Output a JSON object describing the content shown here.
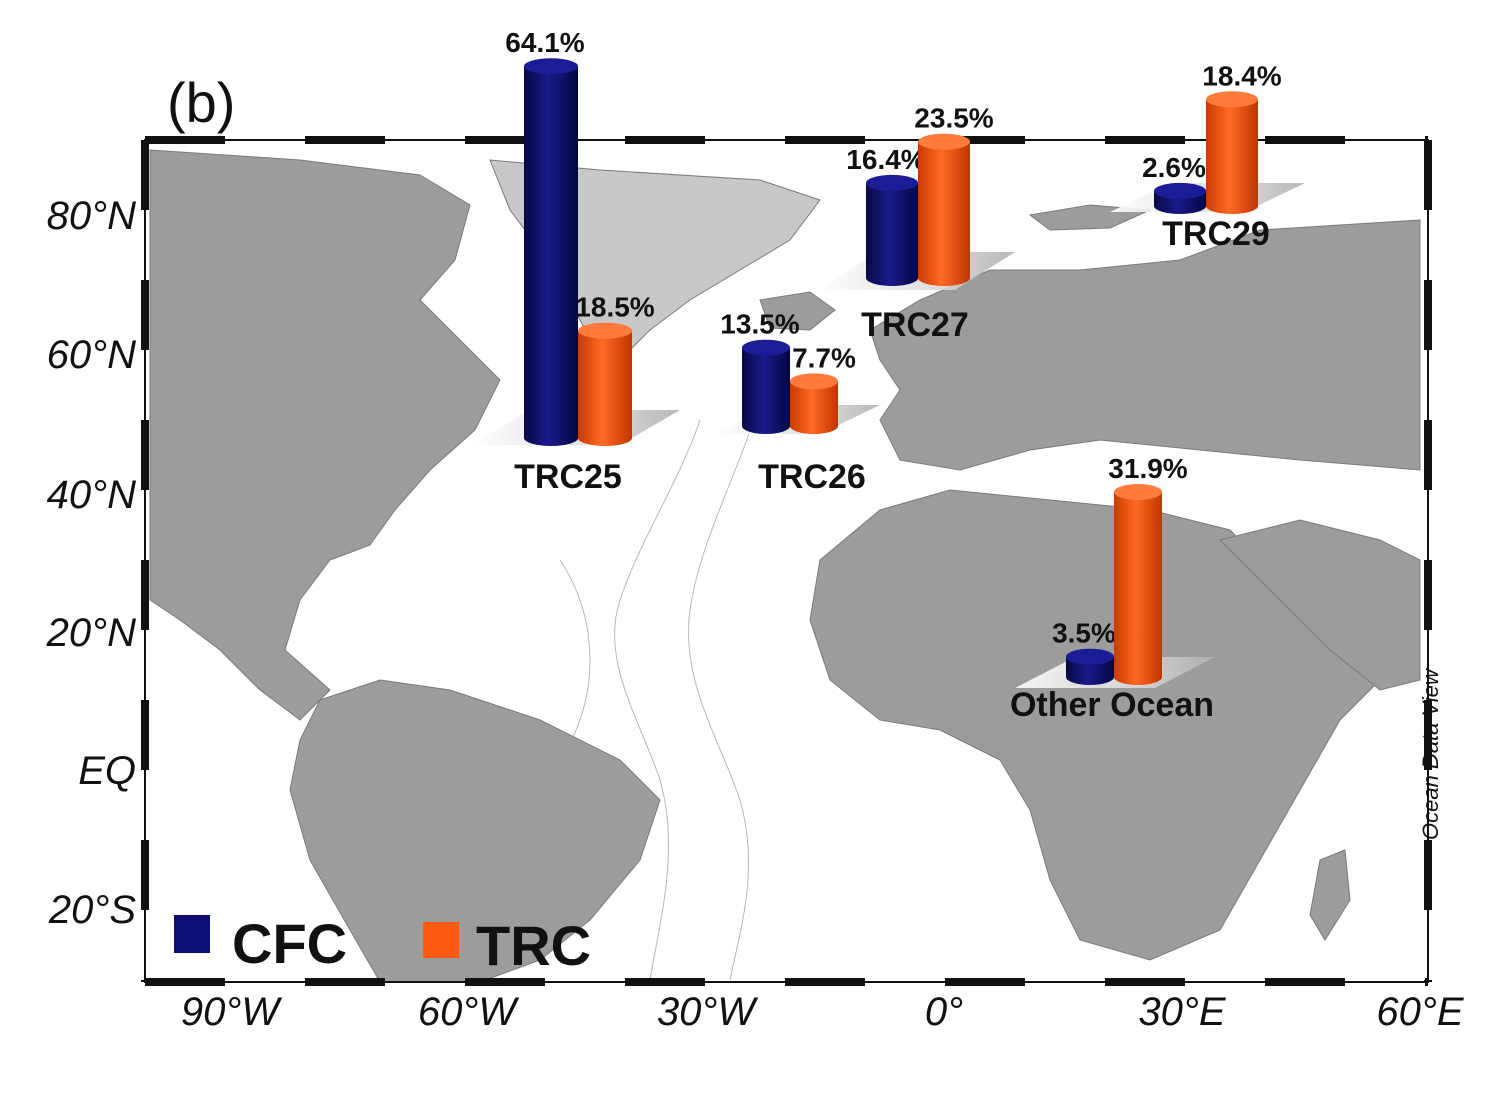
{
  "panel_label": "(b)",
  "map": {
    "latitude_labels": [
      "80°N",
      "60°N",
      "40°N",
      "20°N",
      "EQ",
      "20°S"
    ],
    "longitude_labels": [
      "90°W",
      "60°W",
      "30°W",
      "0°",
      "30°E",
      "60°E"
    ],
    "credit": "Ocean Data View",
    "colors": {
      "land": "#9c9c9c",
      "ice": "#c8c8c8",
      "ocean": "#ffffff",
      "frame": "#111111"
    }
  },
  "legend": {
    "items": [
      {
        "label": "CFC",
        "color": "#0d0d73"
      },
      {
        "label": "TRC",
        "color": "#ff5a14"
      }
    ]
  },
  "chart_data": {
    "type": "bar",
    "series_names": [
      "CFC",
      "TRC"
    ],
    "groups": [
      {
        "region": "TRC25",
        "cfc": 64.1,
        "trc": 18.5,
        "cfc_label": "64.1%",
        "trc_label": "18.5%"
      },
      {
        "region": "TRC26",
        "cfc": 13.5,
        "trc": 7.7,
        "cfc_label": "13.5%",
        "trc_label": "7.7%"
      },
      {
        "region": "TRC27",
        "cfc": 16.4,
        "trc": 23.5,
        "cfc_label": "16.4%",
        "trc_label": "23.5%"
      },
      {
        "region": "TRC29",
        "cfc": 2.6,
        "trc": 18.4,
        "cfc_label": "2.6%",
        "trc_label": "18.4%"
      },
      {
        "region": "Other Ocean",
        "cfc": 3.5,
        "trc": 31.9,
        "cfc_label": "3.5%",
        "trc_label": "31.9%"
      }
    ],
    "colors": {
      "cfc": "#0d0d73",
      "trc": "#ff5a14"
    }
  }
}
